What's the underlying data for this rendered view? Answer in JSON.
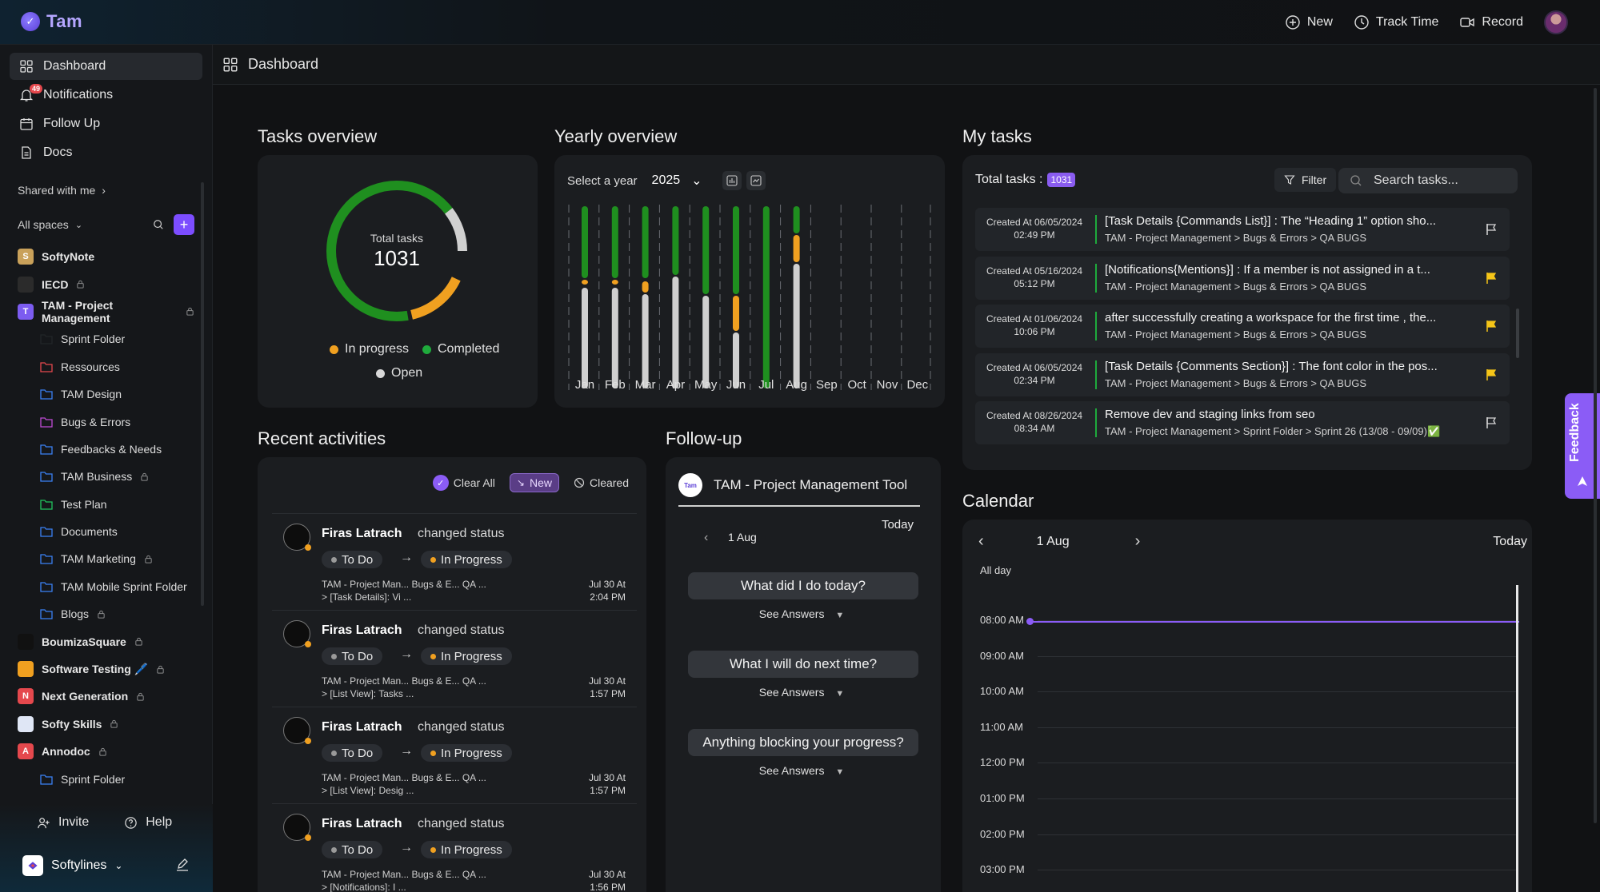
{
  "app": {
    "name": "Tam"
  },
  "topbar": {
    "new": "New",
    "track_time": "Track Time",
    "record": "Record"
  },
  "sidebar": {
    "nav": [
      {
        "label": "Dashboard",
        "icon": "grid-icon"
      },
      {
        "label": "Notifications",
        "icon": "bell-icon",
        "badge": "49"
      },
      {
        "label": "Follow Up",
        "icon": "calendar-icon"
      },
      {
        "label": "Docs",
        "icon": "doc-icon"
      }
    ],
    "shared_with_me": "Shared with me",
    "all_spaces": "All spaces",
    "spaces": [
      {
        "label": "SoftyNote",
        "type": "space",
        "color": "#c9a15a",
        "letter": "S"
      },
      {
        "label": "IECD",
        "type": "space",
        "color": "#2b2b2b",
        "letter": "",
        "locked": true
      },
      {
        "label": "TAM - Project Management",
        "type": "space",
        "color": "#7c5cf0",
        "letter": "T",
        "locked": true
      },
      {
        "label": "Sprint Folder",
        "type": "folder",
        "color": "#222528"
      },
      {
        "label": "Ressources",
        "type": "folder",
        "color": "#e5484d"
      },
      {
        "label": "TAM Design",
        "type": "folder",
        "color": "#3b82f6"
      },
      {
        "label": "Bugs & Errors",
        "type": "folder",
        "color": "#c04bd6"
      },
      {
        "label": "Feedbacks & Needs",
        "type": "folder",
        "color": "#3b82f6"
      },
      {
        "label": "TAM Business",
        "type": "folder",
        "color": "#3b82f6",
        "locked": true
      },
      {
        "label": "Test Plan",
        "type": "folder",
        "color": "#22c55e"
      },
      {
        "label": "Documents",
        "type": "folder",
        "color": "#3b82f6"
      },
      {
        "label": "TAM Marketing",
        "type": "folder",
        "color": "#3b82f6",
        "locked": true
      },
      {
        "label": "TAM Mobile Sprint Folder",
        "type": "folder",
        "color": "#3b82f6"
      },
      {
        "label": "Blogs",
        "type": "folder",
        "color": "#3b82f6",
        "locked": true
      },
      {
        "label": "BoumizaSquare",
        "type": "space",
        "color": "#111111",
        "letter": "",
        "locked": true
      },
      {
        "label": "Software Testing 🖊️",
        "type": "space",
        "color": "#f0a020",
        "letter": "",
        "locked": true
      },
      {
        "label": "Next Generation",
        "type": "space",
        "color": "#e5484d",
        "letter": "N",
        "locked": true
      },
      {
        "label": "Softy Skills",
        "type": "space",
        "color": "#dfe6f5",
        "letter": "",
        "locked": true
      },
      {
        "label": "Annodoc",
        "type": "space",
        "color": "#e5484d",
        "letter": "A",
        "locked": true
      },
      {
        "label": "Sprint Folder",
        "type": "folder",
        "color": "#3b82f6"
      }
    ],
    "invite": "Invite",
    "help": "Help",
    "workspace": "Softylines"
  },
  "header": {
    "title": "Dashboard"
  },
  "tasks_overview": {
    "title": "Tasks overview",
    "total_label": "Total tasks",
    "total": "1031",
    "legend": [
      "In progress",
      "Completed",
      "Open"
    ],
    "colors": {
      "in_progress": "#f0a020",
      "completed": "#1f8f1f",
      "open": "#d0d0d0"
    }
  },
  "yearly_overview": {
    "title": "Yearly overview",
    "select_label": "Select a year",
    "year": "2025",
    "months": [
      "Jan",
      "Feb",
      "Mar",
      "Apr",
      "May",
      "Jun",
      "Jul",
      "Aug",
      "Sep",
      "Oct",
      "Nov",
      "Dec"
    ]
  },
  "recent_activities": {
    "title": "Recent activities",
    "tabs": {
      "clear_all": "Clear All",
      "new": "New",
      "cleared": "Cleared"
    },
    "items": [
      {
        "name": "Firas Latrach",
        "verb": "changed status",
        "from": "To Do",
        "to": "In Progress",
        "path1": "TAM - Project Man...  Bugs & E...  QA ...",
        "path2": "> [Task Details]: Vi ...",
        "date": "Jul 30 At",
        "time": "2:04 PM"
      },
      {
        "name": "Firas Latrach",
        "verb": "changed status",
        "from": "To Do",
        "to": "In Progress",
        "path1": "TAM - Project Man...  Bugs & E...  QA ...",
        "path2": "> [List View]: Tasks ...",
        "date": "Jul 30 At",
        "time": "1:57 PM"
      },
      {
        "name": "Firas Latrach",
        "verb": "changed status",
        "from": "To Do",
        "to": "In Progress",
        "path1": "TAM - Project Man...  Bugs & E...  QA ...",
        "path2": "> [List View]: Desig ...",
        "date": "Jul 30 At",
        "time": "1:57 PM"
      },
      {
        "name": "Firas Latrach",
        "verb": "changed status",
        "from": "To Do",
        "to": "In Progress",
        "path1": "TAM - Project Man...  Bugs & E...  QA ...",
        "path2": "> [Notifications]: I ...",
        "date": "Jul 30 At",
        "time": "1:56 PM"
      }
    ]
  },
  "follow_up": {
    "title": "Follow-up",
    "project": "TAM - Project Management Tool",
    "logo_text": "Tam",
    "date": "1 Aug",
    "today": "Today",
    "questions": [
      "What did I do today?",
      "What I will do next time?",
      "Anything blocking your progress?"
    ],
    "see_answers": "See Answers"
  },
  "my_tasks": {
    "title": "My tasks",
    "total_label": "Total tasks :",
    "total": "1031",
    "filter": "Filter",
    "search_placeholder": "Search tasks...",
    "tasks": [
      {
        "created": "Created At 06/05/2024",
        "time": "02:49 PM",
        "title": "[Task Details {Commands List}] : The “Heading 1” option sho...",
        "path": "TAM - Project Management > Bugs & Errors > QA BUGS",
        "flag": "#d8d8d8"
      },
      {
        "created": "Created At 05/16/2024",
        "time": "05:12 PM",
        "title": "[Notifications{Mentions}] : If a member is not assigned in a t...",
        "path": "TAM - Project Management > Bugs & Errors > QA BUGS",
        "flag": "#f5c518"
      },
      {
        "created": "Created At 01/06/2024",
        "time": "10:06 PM",
        "title": "after successfully creating a workspace for the first time , the...",
        "path": "TAM - Project Management > Bugs & Errors > QA BUGS",
        "flag": "#f5c518"
      },
      {
        "created": "Created At 06/05/2024",
        "time": "02:34 PM",
        "title": "[Task Details {Comments Section}] : The font color in the pos...",
        "path": "TAM - Project Management > Bugs & Errors > QA BUGS",
        "flag": "#f5c518"
      },
      {
        "created": "Created At 08/26/2024",
        "time": "08:34 AM",
        "title": "Remove dev and staging links from seo",
        "path": "TAM - Project Management > Sprint Folder > Sprint 26 (13/08 - 09/09)✅",
        "flag": "#d8d8d8"
      }
    ]
  },
  "calendar": {
    "title": "Calendar",
    "date": "1 Aug",
    "today": "Today",
    "all_day": "All day",
    "hours": [
      "08:00 AM",
      "09:00 AM",
      "10:00 AM",
      "11:00 AM",
      "12:00 PM",
      "01:00 PM",
      "02:00 PM",
      "03:00 PM"
    ]
  },
  "feedback": {
    "label": "Feedback"
  }
}
